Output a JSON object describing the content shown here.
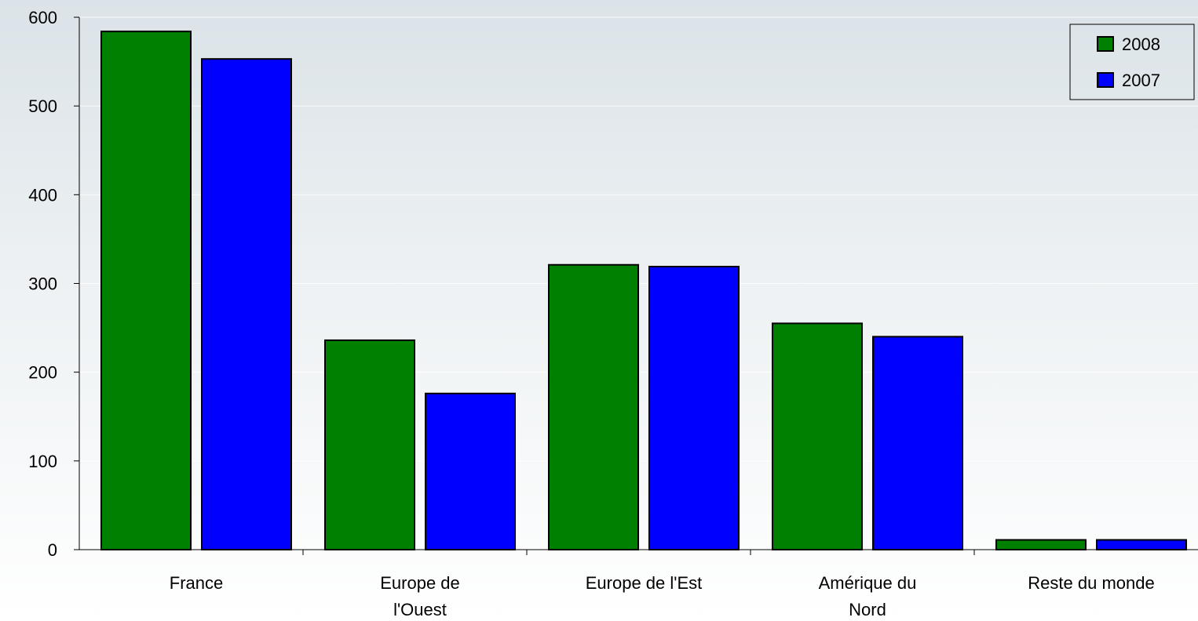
{
  "chart_data": {
    "type": "bar",
    "categories": [
      [
        "France"
      ],
      [
        "Europe de",
        "l'Ouest"
      ],
      [
        "Europe de l'Est"
      ],
      [
        "Amérique du",
        "Nord"
      ],
      [
        "Reste du monde"
      ]
    ],
    "series": [
      {
        "name": "2008",
        "color": "#008000",
        "values": [
          584,
          236,
          321,
          255,
          11
        ]
      },
      {
        "name": "2007",
        "color": "#0000ff",
        "values": [
          553,
          176,
          319,
          240,
          11
        ]
      }
    ],
    "yticks": [
      0,
      100,
      200,
      300,
      400,
      500,
      600
    ],
    "ylim": [
      0,
      600
    ],
    "grid": true,
    "legend": {
      "position": "top-right"
    }
  }
}
